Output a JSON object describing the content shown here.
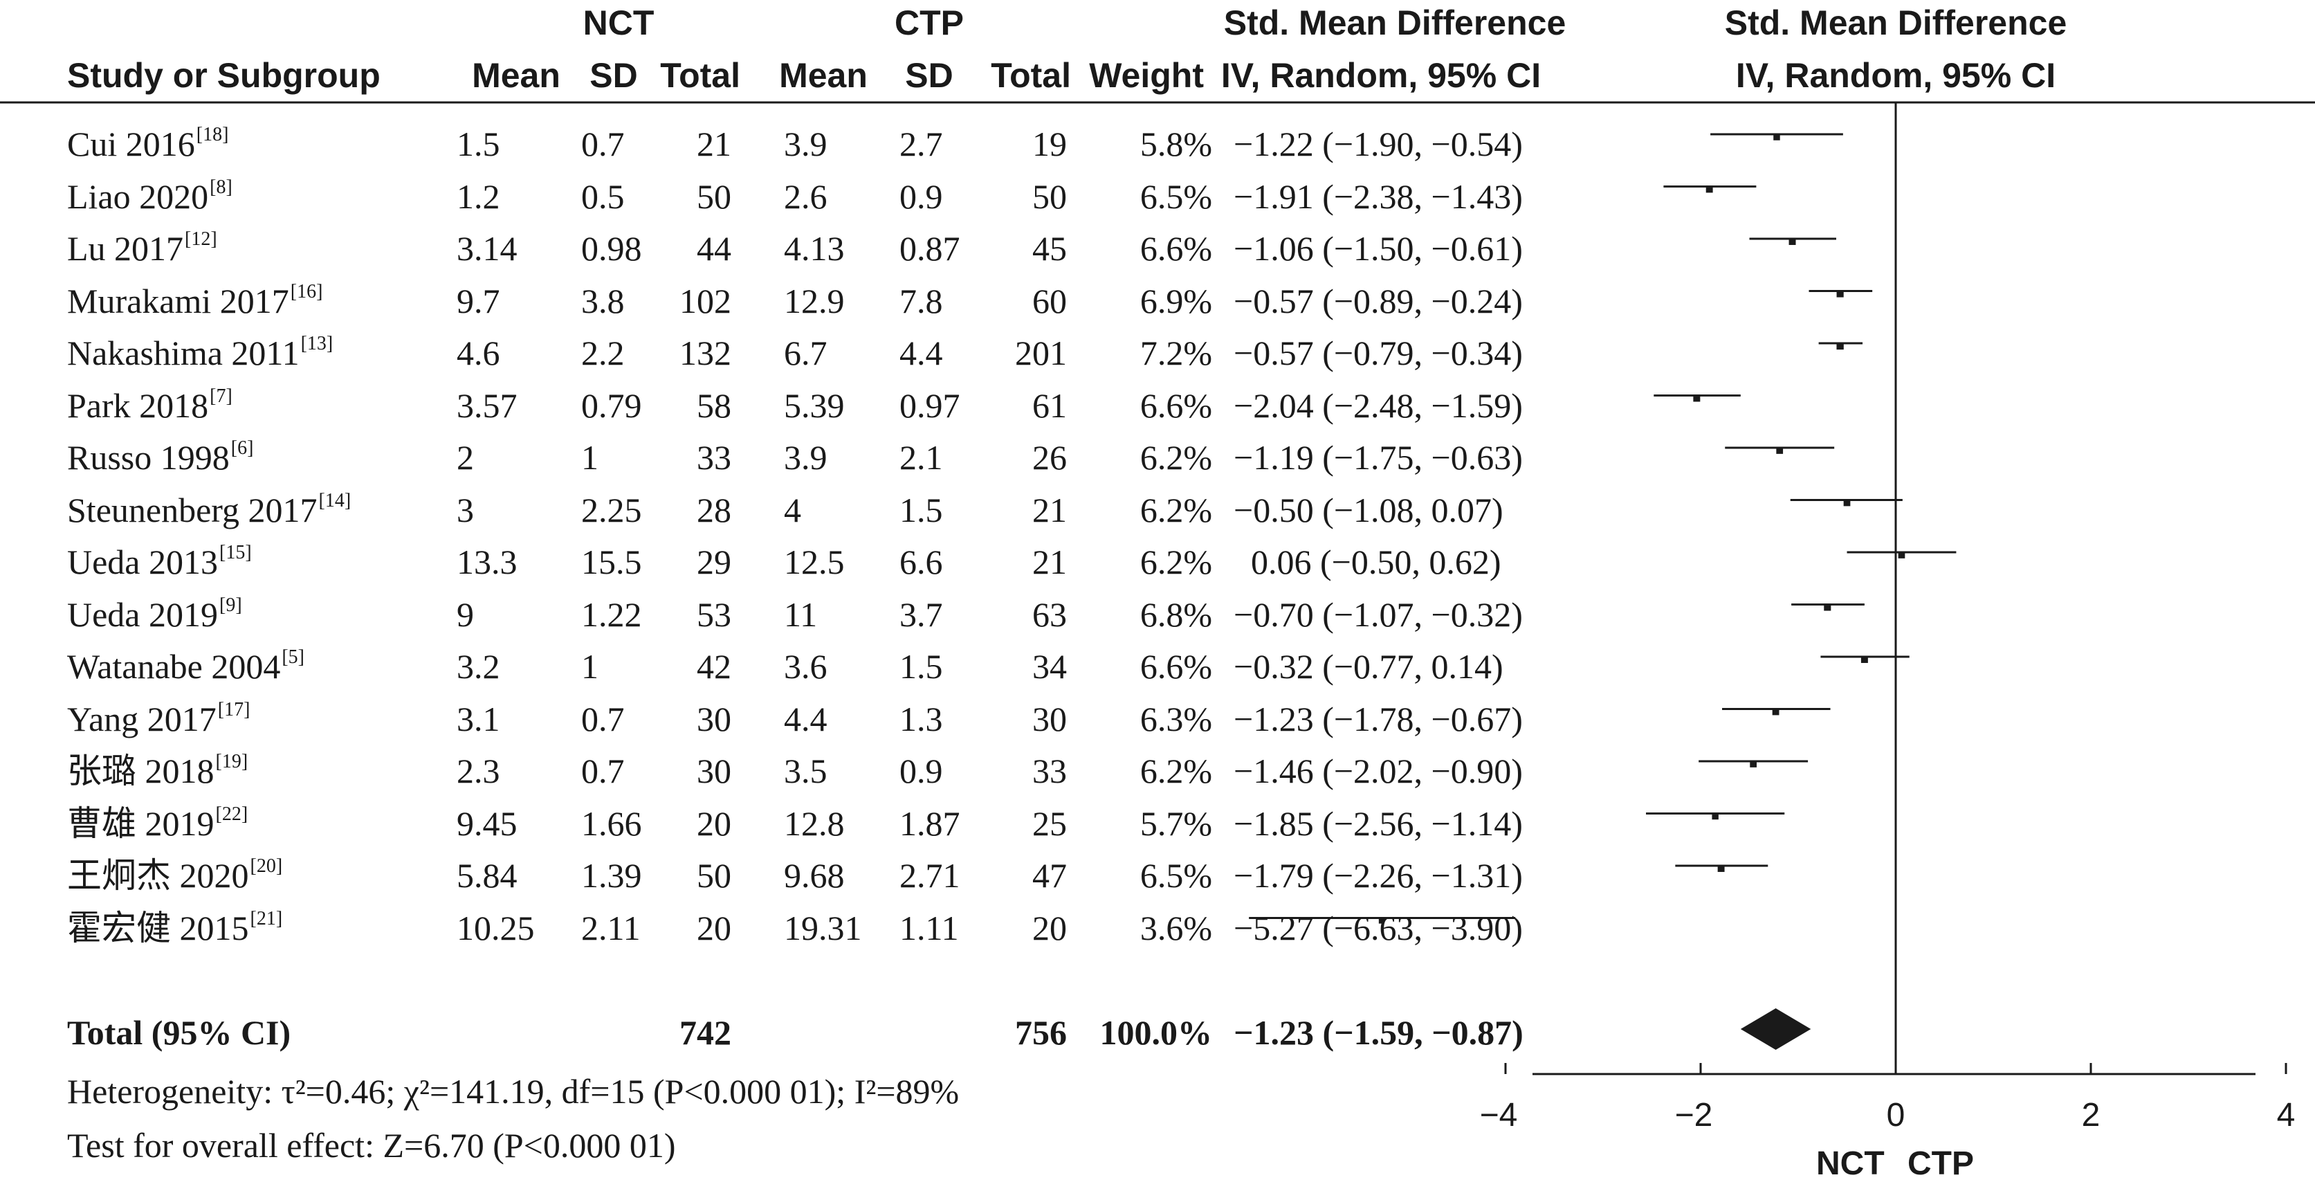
{
  "header": {
    "group1_name": "NCT",
    "group2_name": "CTP",
    "smd_title": "Std. Mean Difference",
    "smd_method": "IV, Random, 95% CI",
    "col_study": "Study or Subgroup",
    "col_mean": "Mean",
    "col_sd": "SD",
    "col_total": "Total",
    "col_weight": "Weight"
  },
  "studies": [
    {
      "name": "Cui 2016",
      "ref": "[18]",
      "m1": "1.5",
      "sd1": "0.7",
      "n1": "21",
      "m2": "3.9",
      "sd2": "2.7",
      "n2": "19",
      "weight": "5.8%",
      "ci_text": "−1.22 (−1.90, −0.54)"
    },
    {
      "name": "Liao 2020",
      "ref": "[8]",
      "m1": "1.2",
      "sd1": "0.5",
      "n1": "50",
      "m2": "2.6",
      "sd2": "0.9",
      "n2": "50",
      "weight": "6.5%",
      "ci_text": "−1.91 (−2.38, −1.43)"
    },
    {
      "name": "Lu 2017",
      "ref": "[12]",
      "m1": "3.14",
      "sd1": "0.98",
      "n1": "44",
      "m2": "4.13",
      "sd2": "0.87",
      "n2": "45",
      "weight": "6.6%",
      "ci_text": "−1.06 (−1.50, −0.61)"
    },
    {
      "name": "Murakami 2017",
      "ref": "[16]",
      "m1": "9.7",
      "sd1": "3.8",
      "n1": "102",
      "m2": "12.9",
      "sd2": "7.8",
      "n2": "60",
      "weight": "6.9%",
      "ci_text": "−0.57 (−0.89, −0.24)"
    },
    {
      "name": "Nakashima 2011",
      "ref": "[13]",
      "m1": "4.6",
      "sd1": "2.2",
      "n1": "132",
      "m2": "6.7",
      "sd2": "4.4",
      "n2": "201",
      "weight": "7.2%",
      "ci_text": "−0.57 (−0.79, −0.34)"
    },
    {
      "name": "Park 2018",
      "ref": "[7]",
      "m1": "3.57",
      "sd1": "0.79",
      "n1": "58",
      "m2": "5.39",
      "sd2": "0.97",
      "n2": "61",
      "weight": "6.6%",
      "ci_text": "−2.04 (−2.48, −1.59)"
    },
    {
      "name": "Russo 1998",
      "ref": "[6]",
      "m1": "2",
      "sd1": "1",
      "n1": "33",
      "m2": "3.9",
      "sd2": "2.1",
      "n2": "26",
      "weight": "6.2%",
      "ci_text": "−1.19 (−1.75, −0.63)"
    },
    {
      "name": "Steunenberg 2017",
      "ref": "[14]",
      "m1": "3",
      "sd1": "2.25",
      "n1": "28",
      "m2": "4",
      "sd2": "1.5",
      "n2": "21",
      "weight": "6.2%",
      "ci_text": "−0.50 (−1.08, 0.07)"
    },
    {
      "name": "Ueda 2013",
      "ref": "[15]",
      "m1": "13.3",
      "sd1": "15.5",
      "n1": "29",
      "m2": "12.5",
      "sd2": "6.6",
      "n2": "21",
      "weight": "6.2%",
      "ci_text": "0.06 (−0.50, 0.62)"
    },
    {
      "name": "Ueda 2019",
      "ref": "[9]",
      "m1": "9",
      "sd1": "1.22",
      "n1": "53",
      "m2": "11",
      "sd2": "3.7",
      "n2": "63",
      "weight": "6.8%",
      "ci_text": "−0.70 (−1.07, −0.32)"
    },
    {
      "name": "Watanabe 2004",
      "ref": "[5]",
      "m1": "3.2",
      "sd1": "1",
      "n1": "42",
      "m2": "3.6",
      "sd2": "1.5",
      "n2": "34",
      "weight": "6.6%",
      "ci_text": "−0.32 (−0.77, 0.14)"
    },
    {
      "name": "Yang 2017",
      "ref": "[17]",
      "m1": "3.1",
      "sd1": "0.7",
      "n1": "30",
      "m2": "4.4",
      "sd2": "1.3",
      "n2": "30",
      "weight": "6.3%",
      "ci_text": "−1.23 (−1.78, −0.67)"
    },
    {
      "name": "张璐 2018",
      "ref": "[19]",
      "m1": "2.3",
      "sd1": "0.7",
      "n1": "30",
      "m2": "3.5",
      "sd2": "0.9",
      "n2": "33",
      "weight": "6.2%",
      "ci_text": "−1.46 (−2.02, −0.90)"
    },
    {
      "name": "曹雄 2019",
      "ref": "[22]",
      "m1": "9.45",
      "sd1": "1.66",
      "n1": "20",
      "m2": "12.8",
      "sd2": "1.87",
      "n2": "25",
      "weight": "5.7%",
      "ci_text": "−1.85 (−2.56, −1.14)"
    },
    {
      "name": "王炯杰 2020",
      "ref": "[20]",
      "m1": "5.84",
      "sd1": "1.39",
      "n1": "50",
      "m2": "9.68",
      "sd2": "2.71",
      "n2": "47",
      "weight": "6.5%",
      "ci_text": "−1.79 (−2.26, −1.31)"
    },
    {
      "name": "霍宏健 2015",
      "ref": "[21]",
      "m1": "10.25",
      "sd1": "2.11",
      "n1": "20",
      "m2": "19.31",
      "sd2": "1.11",
      "n2": "20",
      "weight": "3.6%",
      "ci_text": "−5.27 (−6.63, −3.90)"
    }
  ],
  "total": {
    "label": "Total (95% CI)",
    "n1": "742",
    "n2": "756",
    "weight": "100.0%",
    "ci_text": "−1.23 (−1.59, −0.87)"
  },
  "footer": {
    "heterogeneity": "Heterogeneity: τ²=0.46; χ²=141.19, df=15 (P<0.000 01); I²=89%",
    "overall_effect": "Test for overall effect: Z=6.70 (P<0.000 01)",
    "favours_left": "NCT",
    "favours_right": "CTP"
  },
  "chart_data": {
    "type": "forest",
    "measure": "Std. Mean Difference",
    "method": "IV, Random, 95% CI",
    "x_ticks": [
      -4,
      -2,
      0,
      2,
      4
    ],
    "x_tick_labels": [
      "−4",
      "−2",
      "0",
      "2",
      "4"
    ],
    "series": [
      {
        "study": "Cui 2016",
        "smd": -1.22,
        "lo": -1.9,
        "hi": -0.54,
        "weight": 5.8
      },
      {
        "study": "Liao 2020",
        "smd": -1.91,
        "lo": -2.38,
        "hi": -1.43,
        "weight": 6.5
      },
      {
        "study": "Lu 2017",
        "smd": -1.06,
        "lo": -1.5,
        "hi": -0.61,
        "weight": 6.6
      },
      {
        "study": "Murakami 2017",
        "smd": -0.57,
        "lo": -0.89,
        "hi": -0.24,
        "weight": 6.9
      },
      {
        "study": "Nakashima 2011",
        "smd": -0.57,
        "lo": -0.79,
        "hi": -0.34,
        "weight": 7.2
      },
      {
        "study": "Park 2018",
        "smd": -2.04,
        "lo": -2.48,
        "hi": -1.59,
        "weight": 6.6
      },
      {
        "study": "Russo 1998",
        "smd": -1.19,
        "lo": -1.75,
        "hi": -0.63,
        "weight": 6.2
      },
      {
        "study": "Steunenberg 2017",
        "smd": -0.5,
        "lo": -1.08,
        "hi": 0.07,
        "weight": 6.2
      },
      {
        "study": "Ueda 2013",
        "smd": 0.06,
        "lo": -0.5,
        "hi": 0.62,
        "weight": 6.2
      },
      {
        "study": "Ueda 2019",
        "smd": -0.7,
        "lo": -1.07,
        "hi": -0.32,
        "weight": 6.8
      },
      {
        "study": "Watanabe 2004",
        "smd": -0.32,
        "lo": -0.77,
        "hi": 0.14,
        "weight": 6.6
      },
      {
        "study": "Yang 2017",
        "smd": -1.23,
        "lo": -1.78,
        "hi": -0.67,
        "weight": 6.3
      },
      {
        "study": "张璐 2018",
        "smd": -1.46,
        "lo": -2.02,
        "hi": -0.9,
        "weight": 6.2
      },
      {
        "study": "曹雄 2019",
        "smd": -1.85,
        "lo": -2.56,
        "hi": -1.14,
        "weight": 5.7
      },
      {
        "study": "王炯杰 2020",
        "smd": -1.79,
        "lo": -2.26,
        "hi": -1.31,
        "weight": 6.5
      },
      {
        "study": "霍宏健 2015",
        "smd": -5.27,
        "lo": -6.63,
        "hi": -3.9,
        "weight": 3.6
      }
    ],
    "total": {
      "smd": -1.23,
      "lo": -1.59,
      "hi": -0.87,
      "weight": 100.0
    }
  }
}
